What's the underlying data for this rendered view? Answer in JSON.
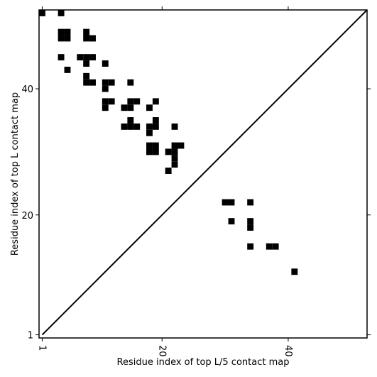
{
  "chart_data": {
    "type": "contact_map",
    "xlabel": "Residue index of top L/5 contact map",
    "ylabel": "Residue index of top L contact map",
    "xlim": [
      0.5,
      52.5
    ],
    "ylim": [
      0.5,
      52.5
    ],
    "xticks": [
      1,
      20,
      40
    ],
    "yticks": [
      1,
      20,
      40
    ],
    "color": "#000000",
    "x": [
      1,
      4,
      4,
      5,
      4,
      5,
      8,
      8,
      9,
      4,
      5,
      7,
      8,
      9,
      8,
      11,
      8,
      8,
      9,
      11,
      12,
      11,
      15,
      11,
      12,
      11,
      15,
      16,
      14,
      15,
      18,
      19,
      15,
      19,
      14,
      15,
      16,
      18,
      19,
      22,
      18,
      18,
      19,
      18,
      19,
      22,
      23,
      21,
      22,
      22,
      22,
      21,
      30,
      31,
      34,
      31,
      34,
      34,
      34,
      37,
      38,
      41
    ],
    "y": [
      52,
      52,
      49,
      49,
      48,
      48,
      49,
      48,
      48,
      45,
      43,
      45,
      45,
      45,
      44,
      44,
      42,
      41,
      41,
      41,
      41,
      40,
      41,
      38,
      38,
      37,
      38,
      38,
      37,
      37,
      37,
      38,
      35,
      35,
      34,
      34,
      34,
      34,
      34,
      34,
      33,
      31,
      31,
      30,
      30,
      31,
      31,
      30,
      30,
      29,
      28,
      27,
      22,
      22,
      22,
      19,
      19,
      18,
      15,
      15,
      15,
      11
    ]
  }
}
